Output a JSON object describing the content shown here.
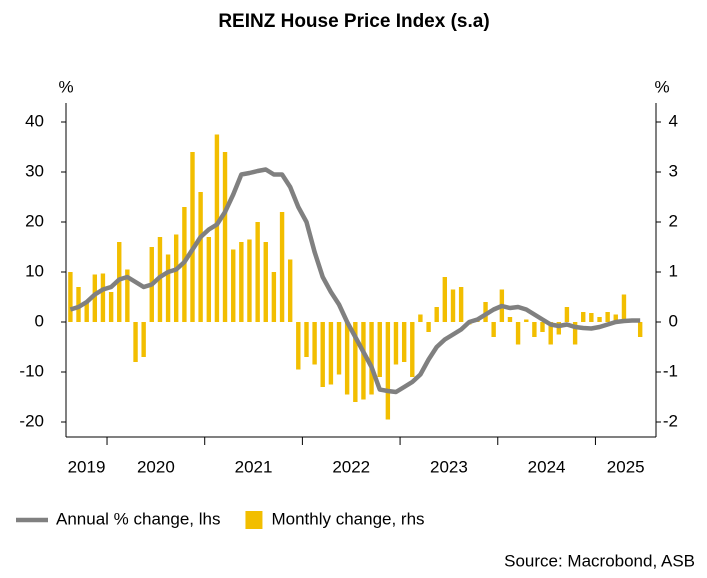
{
  "chart_data": {
    "type": "combo",
    "title": "REINZ House Price Index (s.a)",
    "source": "Source: Macrobond, ASB",
    "y_unit": "%",
    "y2_unit": "%",
    "x": [
      2019.625,
      2019.708,
      2019.792,
      2019.875,
      2019.958,
      2020.042,
      2020.125,
      2020.208,
      2020.292,
      2020.375,
      2020.458,
      2020.542,
      2020.625,
      2020.708,
      2020.792,
      2020.875,
      2020.958,
      2021.042,
      2021.125,
      2021.208,
      2021.292,
      2021.375,
      2021.458,
      2021.542,
      2021.625,
      2021.708,
      2021.792,
      2021.875,
      2021.958,
      2022.042,
      2022.125,
      2022.208,
      2022.292,
      2022.375,
      2022.458,
      2022.542,
      2022.625,
      2022.708,
      2022.792,
      2022.875,
      2022.958,
      2023.042,
      2023.125,
      2023.208,
      2023.292,
      2023.375,
      2023.458,
      2023.542,
      2023.625,
      2023.708,
      2023.792,
      2023.875,
      2023.958,
      2024.042,
      2024.125,
      2024.208,
      2024.292,
      2024.375,
      2024.458,
      2024.542,
      2024.625,
      2024.708,
      2024.792,
      2024.875,
      2024.958,
      2025.042,
      2025.125,
      2025.208,
      2025.292,
      2025.375,
      2025.458
    ],
    "series": [
      {
        "name": "Annual % change, lhs",
        "type": "line",
        "axis": "y",
        "color": "#808080",
        "values": [
          2.5,
          3,
          4,
          5.5,
          6.5,
          7,
          8.5,
          9,
          8,
          7,
          7.5,
          9,
          10,
          10.5,
          12,
          14.5,
          17,
          18.5,
          19.5,
          22,
          25.5,
          29.5,
          29.8,
          30.2,
          30.5,
          29.5,
          29.5,
          27,
          23,
          20,
          14,
          9,
          6,
          3.5,
          0,
          -3,
          -6,
          -9,
          -13.5,
          -13.8,
          -14,
          -13,
          -12,
          -10.5,
          -7.5,
          -5,
          -3.5,
          -2.5,
          -1.5,
          0,
          0.5,
          1.5,
          2.5,
          3.2,
          2.8,
          3,
          2.5,
          1.5,
          0.5,
          -0.5,
          -0.8,
          -0.5,
          -1,
          -1.2,
          -1.3,
          -1,
          -0.5,
          0,
          0.2,
          0.3,
          0.3
        ]
      },
      {
        "name": "Monthly change, rhs",
        "type": "bar",
        "axis": "y2",
        "color": "#f2be00",
        "values": [
          1.0,
          0.7,
          0.4,
          0.95,
          0.97,
          0.6,
          1.6,
          1.05,
          -0.8,
          -0.7,
          1.5,
          1.7,
          1.35,
          1.75,
          2.3,
          3.4,
          2.6,
          1.7,
          3.75,
          3.4,
          1.45,
          1.6,
          1.65,
          2.0,
          1.6,
          1.0,
          2.2,
          1.25,
          -0.95,
          -0.7,
          -0.85,
          -1.3,
          -1.25,
          -1.05,
          -1.45,
          -1.6,
          -1.55,
          -1.45,
          -1.1,
          -1.95,
          -0.85,
          -0.8,
          -1.1,
          0.15,
          -0.2,
          0.3,
          0.9,
          0.65,
          0.7,
          -0.05,
          0.05,
          0.4,
          -0.3,
          0.65,
          0.1,
          -0.45,
          0.05,
          -0.3,
          -0.2,
          -0.45,
          -0.25,
          0.3,
          -0.45,
          0.2,
          0.18,
          0.1,
          0.2,
          0.15,
          0.55,
          0.02,
          -0.3
        ]
      }
    ],
    "xlim": [
      2019.58,
      2025.62
    ],
    "xticks": [
      {
        "value": 2019.79,
        "label": "2019"
      },
      {
        "value": 2020.5,
        "label": "2020"
      },
      {
        "value": 2021.5,
        "label": "2021"
      },
      {
        "value": 2022.5,
        "label": "2022"
      },
      {
        "value": 2023.5,
        "label": "2023"
      },
      {
        "value": 2024.5,
        "label": "2024"
      },
      {
        "value": 2025.31,
        "label": "2025"
      }
    ],
    "x_minor_ticks": [
      2020,
      2021,
      2022,
      2023,
      2024,
      2025
    ],
    "ylim": [
      -23,
      43.8
    ],
    "yticks": [
      -20,
      -10,
      0,
      10,
      20,
      30,
      40
    ],
    "y2lim": [
      -2.3,
      4.38
    ],
    "y2ticks": [
      -2,
      -1,
      0,
      1,
      2,
      3,
      4
    ],
    "legend": "bottom-left"
  }
}
